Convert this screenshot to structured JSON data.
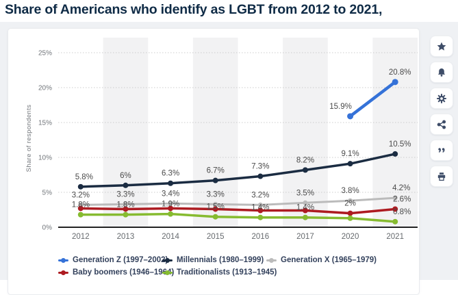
{
  "page": {
    "title": "Share of Americans who identify as LGBT from 2012 to 2021,"
  },
  "chart_data": {
    "type": "line",
    "title": "Share of Americans who identify as LGBT from 2012 to 2021",
    "x": [
      "2012",
      "2013",
      "2014",
      "2015",
      "2016",
      "2017",
      "2020",
      "2021"
    ],
    "ylabel": "Share of respondents",
    "xlabel": "",
    "ylim": [
      0,
      25
    ],
    "y_ticks": [
      0,
      5,
      10,
      15,
      20,
      25
    ],
    "y_tick_labels": [
      "0%",
      "5%",
      "10%",
      "15%",
      "20%",
      "25%"
    ],
    "grid": "horizontal dotted",
    "legend_position": "bottom",
    "series": [
      {
        "name": "Generation Z (1997–2002)",
        "color": "#3572d8",
        "values": [
          null,
          null,
          null,
          null,
          null,
          null,
          15.9,
          20.8
        ],
        "labels": [
          null,
          null,
          null,
          null,
          null,
          null,
          "15.9%",
          "20.8%"
        ]
      },
      {
        "name": "Millennials (1980–1999)",
        "color": "#1b2c42",
        "values": [
          5.8,
          6.0,
          6.3,
          6.7,
          7.3,
          8.2,
          9.1,
          10.5
        ],
        "labels": [
          "5.8%",
          "6%",
          "6.3%",
          "6.7%",
          "7.3%",
          "8.2%",
          "9.1%",
          "10.5%"
        ]
      },
      {
        "name": "Generation X (1965–1979)",
        "color": "#bbbbbb",
        "values": [
          3.2,
          3.3,
          3.4,
          3.3,
          3.2,
          3.5,
          3.8,
          4.2
        ],
        "labels": [
          "3.2%",
          "3.3%",
          "3.4%",
          "3.3%",
          "3.2%",
          "3.5%",
          "3.8%",
          "4.2%"
        ]
      },
      {
        "name": "Baby boomers (1946–1964)",
        "color": "#ad1b21",
        "values": [
          2.7,
          2.6,
          2.7,
          2.6,
          2.4,
          2.4,
          2.0,
          2.6
        ],
        "labels": [
          null,
          null,
          null,
          null,
          null,
          null,
          "2%",
          "2.6%"
        ]
      },
      {
        "name": "Traditionalists (1913–1945)",
        "color": "#86bb30",
        "values": [
          1.8,
          1.8,
          1.9,
          1.5,
          1.4,
          1.4,
          1.3,
          0.8
        ],
        "labels": [
          "1.8%",
          "1.8%",
          "1.9%",
          "1.5%",
          "1.4%",
          "1.4%",
          null,
          "0.8%"
        ]
      }
    ]
  },
  "colors": {
    "title_text": "#0f2b46",
    "page_background": "#eff1f4",
    "card_background": "#ffffff",
    "column_stripe": "#f2f2f3",
    "gridline": "#cccccc",
    "axis_line": "#222222",
    "tick_text": "#71757a",
    "data_label_text": "#4a4a4a",
    "legend_text": "#33415c",
    "toolbar_icon": "#3e4d68"
  },
  "sidebar": {
    "buttons": [
      {
        "label": "favorite",
        "icon": "star-icon"
      },
      {
        "label": "notifications",
        "icon": "bell-icon"
      },
      {
        "label": "settings",
        "icon": "gear-icon"
      },
      {
        "label": "share",
        "icon": "share-icon"
      },
      {
        "label": "cite",
        "icon": "quote-icon"
      },
      {
        "label": "print",
        "icon": "print-icon"
      }
    ]
  }
}
